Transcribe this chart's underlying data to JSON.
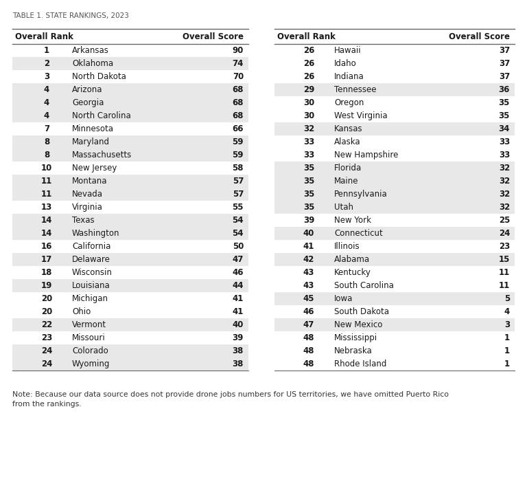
{
  "title": "TABLE 1. STATE RANKINGS, 2023",
  "note": "Note: Because our data source does not provide drone jobs numbers for US territories, we have omitted Puerto Rico\nfrom the rankings.",
  "left_table": [
    [
      1,
      "Arkansas",
      90
    ],
    [
      2,
      "Oklahoma",
      74
    ],
    [
      3,
      "North Dakota",
      70
    ],
    [
      4,
      "Arizona",
      68
    ],
    [
      4,
      "Georgia",
      68
    ],
    [
      4,
      "North Carolina",
      68
    ],
    [
      7,
      "Minnesota",
      66
    ],
    [
      8,
      "Maryland",
      59
    ],
    [
      8,
      "Massachusetts",
      59
    ],
    [
      10,
      "New Jersey",
      58
    ],
    [
      11,
      "Montana",
      57
    ],
    [
      11,
      "Nevada",
      57
    ],
    [
      13,
      "Virginia",
      55
    ],
    [
      14,
      "Texas",
      54
    ],
    [
      14,
      "Washington",
      54
    ],
    [
      16,
      "California",
      50
    ],
    [
      17,
      "Delaware",
      47
    ],
    [
      18,
      "Wisconsin",
      46
    ],
    [
      19,
      "Louisiana",
      44
    ],
    [
      20,
      "Michigan",
      41
    ],
    [
      20,
      "Ohio",
      41
    ],
    [
      22,
      "Vermont",
      40
    ],
    [
      23,
      "Missouri",
      39
    ],
    [
      24,
      "Colorado",
      38
    ],
    [
      24,
      "Wyoming",
      38
    ]
  ],
  "right_table": [
    [
      26,
      "Hawaii",
      37
    ],
    [
      26,
      "Idaho",
      37
    ],
    [
      26,
      "Indiana",
      37
    ],
    [
      29,
      "Tennessee",
      36
    ],
    [
      30,
      "Oregon",
      35
    ],
    [
      30,
      "West Virginia",
      35
    ],
    [
      32,
      "Kansas",
      34
    ],
    [
      33,
      "Alaska",
      33
    ],
    [
      33,
      "New Hampshire",
      33
    ],
    [
      35,
      "Florida",
      32
    ],
    [
      35,
      "Maine",
      32
    ],
    [
      35,
      "Pennsylvania",
      32
    ],
    [
      35,
      "Utah",
      32
    ],
    [
      39,
      "New York",
      25
    ],
    [
      40,
      "Connecticut",
      24
    ],
    [
      41,
      "Illinois",
      23
    ],
    [
      42,
      "Alabama",
      15
    ],
    [
      43,
      "Kentucky",
      11
    ],
    [
      43,
      "South Carolina",
      11
    ],
    [
      45,
      "Iowa",
      5
    ],
    [
      46,
      "South Dakota",
      4
    ],
    [
      47,
      "New Mexico",
      3
    ],
    [
      48,
      "Mississippi",
      1
    ],
    [
      48,
      "Nebraska",
      1
    ],
    [
      48,
      "Rhode Island",
      1
    ]
  ],
  "bg_color": "#ffffff",
  "row_alt_color": "#e8e8e8",
  "header_line_color": "#666666",
  "text_color": "#1a1a1a",
  "title_color": "#555555",
  "note_color": "#333333",
  "title_fontsize": 7.5,
  "header_fontsize": 8.5,
  "data_fontsize": 8.5,
  "note_fontsize": 7.8
}
